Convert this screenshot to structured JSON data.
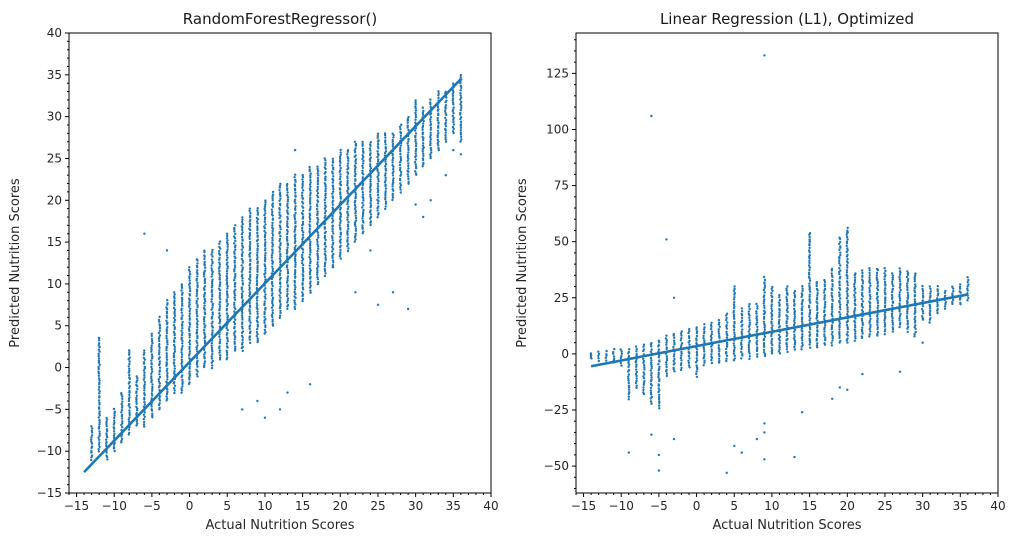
{
  "colors": {
    "series": "#1f77b4",
    "axis": "#000000",
    "text": "#262626"
  },
  "chart_data": [
    {
      "type": "scatter",
      "title": "RandomForestRegressor()",
      "xlabel": "Actual Nutrition Scores",
      "ylabel": "Predicted Nutrition Scores",
      "xlim": [
        -16,
        40
      ],
      "ylim": [
        -15,
        40
      ],
      "xticks": [
        -15,
        -10,
        -5,
        0,
        5,
        10,
        15,
        20,
        25,
        30,
        35,
        40
      ],
      "yticks": [
        -15,
        -10,
        -5,
        0,
        5,
        10,
        15,
        20,
        25,
        30,
        35,
        40
      ],
      "x_minor_step": 1,
      "y_minor_step": 1,
      "fit_line": {
        "x": [
          -14,
          36
        ],
        "y": [
          -12.5,
          34.5
        ]
      },
      "column_x_range": [
        -13,
        36
      ],
      "column_spans": [
        [
          -13,
          -11,
          -7
        ],
        [
          -12,
          -10,
          3.5
        ],
        [
          -11,
          -11,
          -6
        ],
        [
          -10,
          -10,
          -5
        ],
        [
          -9,
          -9,
          -3
        ],
        [
          -8,
          -8,
          2
        ],
        [
          -7,
          -7,
          -1
        ],
        [
          -6,
          -7,
          2
        ],
        [
          -5,
          -6,
          4
        ],
        [
          -4,
          -5,
          6
        ],
        [
          -3,
          -4,
          8
        ],
        [
          -2,
          -3,
          9
        ],
        [
          -1,
          -3,
          10
        ],
        [
          0,
          -2,
          12
        ],
        [
          1,
          -1,
          13
        ],
        [
          2,
          0,
          14
        ],
        [
          3,
          0,
          14
        ],
        [
          4,
          1,
          15
        ],
        [
          5,
          1,
          16
        ],
        [
          6,
          2,
          17
        ],
        [
          7,
          2,
          18
        ],
        [
          8,
          3,
          19
        ],
        [
          9,
          3,
          19
        ],
        [
          10,
          4,
          20
        ],
        [
          11,
          5,
          21
        ],
        [
          12,
          6,
          22
        ],
        [
          13,
          7,
          22
        ],
        [
          14,
          7,
          23
        ],
        [
          15,
          8,
          23
        ],
        [
          16,
          9,
          24
        ],
        [
          17,
          10,
          24
        ],
        [
          18,
          11,
          25
        ],
        [
          19,
          12,
          25
        ],
        [
          20,
          13,
          26
        ],
        [
          21,
          14,
          26
        ],
        [
          22,
          15,
          27
        ],
        [
          23,
          16,
          27
        ],
        [
          24,
          17,
          27
        ],
        [
          25,
          18,
          28
        ],
        [
          26,
          19,
          28
        ],
        [
          27,
          20,
          28
        ],
        [
          28,
          21,
          29
        ],
        [
          29,
          22,
          30
        ],
        [
          30,
          23,
          32
        ],
        [
          31,
          24,
          31
        ],
        [
          32,
          25,
          32
        ],
        [
          33,
          26,
          33
        ],
        [
          34,
          27,
          33
        ],
        [
          35,
          28,
          34
        ],
        [
          36,
          27,
          35
        ]
      ],
      "outliers": [
        [
          -6,
          16
        ],
        [
          -3,
          14
        ],
        [
          -8,
          2
        ],
        [
          -12,
          3.5
        ],
        [
          9,
          -4
        ],
        [
          12,
          -5
        ],
        [
          14,
          26
        ],
        [
          20,
          18
        ],
        [
          24,
          14
        ],
        [
          27,
          9
        ],
        [
          29,
          7
        ],
        [
          30,
          19.5
        ],
        [
          32,
          20
        ],
        [
          35,
          26
        ],
        [
          36,
          25.5
        ],
        [
          31,
          18
        ],
        [
          34,
          23
        ],
        [
          25,
          7.5
        ],
        [
          19,
          12
        ],
        [
          22,
          9
        ],
        [
          13,
          -3
        ],
        [
          16,
          -2
        ],
        [
          10,
          -6
        ],
        [
          7,
          -5
        ]
      ]
    },
    {
      "type": "scatter",
      "title": "Linear Regression (L1), Optimized",
      "xlabel": "Actual Nutrition Scores",
      "ylabel": "Predicted Nutrition Scores",
      "xlim": [
        -16,
        40
      ],
      "ylim": [
        -62,
        143
      ],
      "xticks": [
        -15,
        -10,
        -5,
        0,
        5,
        10,
        15,
        20,
        25,
        30,
        35,
        40
      ],
      "yticks": [
        -50,
        -25,
        0,
        25,
        50,
        75,
        100,
        125
      ],
      "x_minor_step": 1,
      "y_minor_step": 5,
      "fit_line": {
        "x": [
          -14,
          36
        ],
        "y": [
          -5.5,
          26.5
        ]
      },
      "column_x_range": [
        -14,
        36
      ],
      "column_spans": [
        [
          -14,
          -2,
          0
        ],
        [
          -13,
          -3,
          1
        ],
        [
          -12,
          -3,
          1
        ],
        [
          -11,
          -4,
          2
        ],
        [
          -10,
          -5,
          2
        ],
        [
          -9,
          -20,
          2
        ],
        [
          -8,
          -15,
          3
        ],
        [
          -7,
          -18,
          4
        ],
        [
          -6,
          -22,
          5
        ],
        [
          -5,
          -24,
          6
        ],
        [
          -4,
          -10,
          8
        ],
        [
          -3,
          -8,
          9
        ],
        [
          -2,
          -7,
          10
        ],
        [
          -1,
          -6,
          11
        ],
        [
          0,
          -10,
          12
        ],
        [
          1,
          -5,
          13
        ],
        [
          2,
          -4,
          14
        ],
        [
          3,
          -4,
          15
        ],
        [
          4,
          -3,
          18
        ],
        [
          5,
          -3,
          30
        ],
        [
          6,
          -2,
          20
        ],
        [
          7,
          -2,
          22
        ],
        [
          8,
          -1,
          22
        ],
        [
          9,
          -1,
          34
        ],
        [
          10,
          0,
          30
        ],
        [
          11,
          0,
          26
        ],
        [
          12,
          1,
          30
        ],
        [
          13,
          2,
          28
        ],
        [
          14,
          2,
          30
        ],
        [
          15,
          3,
          54
        ],
        [
          16,
          3,
          32
        ],
        [
          17,
          4,
          33
        ],
        [
          18,
          4,
          38
        ],
        [
          19,
          5,
          52
        ],
        [
          20,
          5,
          56
        ],
        [
          21,
          6,
          36
        ],
        [
          22,
          7,
          37
        ],
        [
          23,
          8,
          38
        ],
        [
          24,
          8,
          38
        ],
        [
          25,
          9,
          38
        ],
        [
          26,
          10,
          36
        ],
        [
          27,
          12,
          38
        ],
        [
          28,
          10,
          37
        ],
        [
          29,
          8,
          36
        ],
        [
          30,
          15,
          30
        ],
        [
          31,
          14,
          30
        ],
        [
          32,
          18,
          30
        ],
        [
          33,
          20,
          28
        ],
        [
          34,
          22,
          30
        ],
        [
          35,
          22,
          31
        ],
        [
          36,
          24,
          34
        ]
      ],
      "outliers": [
        [
          9,
          133
        ],
        [
          -6,
          106
        ],
        [
          -4,
          51
        ],
        [
          -3,
          25
        ],
        [
          -9,
          -44
        ],
        [
          -6,
          -36
        ],
        [
          -5,
          -45
        ],
        [
          -5,
          -52
        ],
        [
          -3,
          -38
        ],
        [
          4,
          -53
        ],
        [
          5,
          -41
        ],
        [
          6,
          -44
        ],
        [
          8,
          -38
        ],
        [
          9,
          -35
        ],
        [
          9,
          -47
        ],
        [
          9,
          -31
        ],
        [
          13,
          -46
        ],
        [
          14,
          -26
        ],
        [
          19,
          -15
        ],
        [
          20,
          -16
        ],
        [
          18,
          -20
        ],
        [
          22,
          -9
        ],
        [
          20,
          54
        ],
        [
          15,
          50
        ],
        [
          28,
          23
        ],
        [
          27,
          -8
        ],
        [
          24,
          33
        ],
        [
          30,
          5
        ]
      ]
    }
  ]
}
